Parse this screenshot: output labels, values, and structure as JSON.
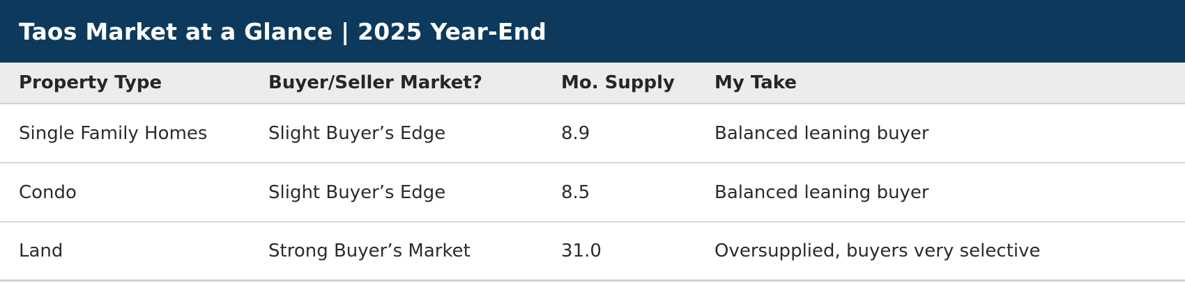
{
  "title": "Taos Market at a Glance | 2025 Year-End",
  "colors": {
    "title_bar_bg": "#0d3a5c",
    "title_text": "#ffffff",
    "column_header_bg": "#ececec",
    "row_separator": "#d6d6d6",
    "body_text": "#2b2b2b"
  },
  "chart_data": {
    "type": "table",
    "title": "Taos Market at a Glance | 2025 Year-End",
    "columns": [
      "Property Type",
      "Buyer/Seller Market?",
      "Mo. Supply",
      "My Take"
    ],
    "rows": [
      [
        "Single Family Homes",
        "Slight Buyer’s Edge",
        "8.9",
        "Balanced leaning buyer"
      ],
      [
        "Condo",
        "Slight Buyer’s Edge",
        "8.5",
        "Balanced leaning buyer"
      ],
      [
        "Land",
        "Strong Buyer’s Market",
        "31.0",
        "Oversupplied, buyers very selective"
      ]
    ],
    "layout": {
      "header_style": "bold on light gray band",
      "grid": "horizontal separators only",
      "mo_supply_values_numeric": [
        8.9,
        8.5,
        31.0
      ]
    }
  }
}
